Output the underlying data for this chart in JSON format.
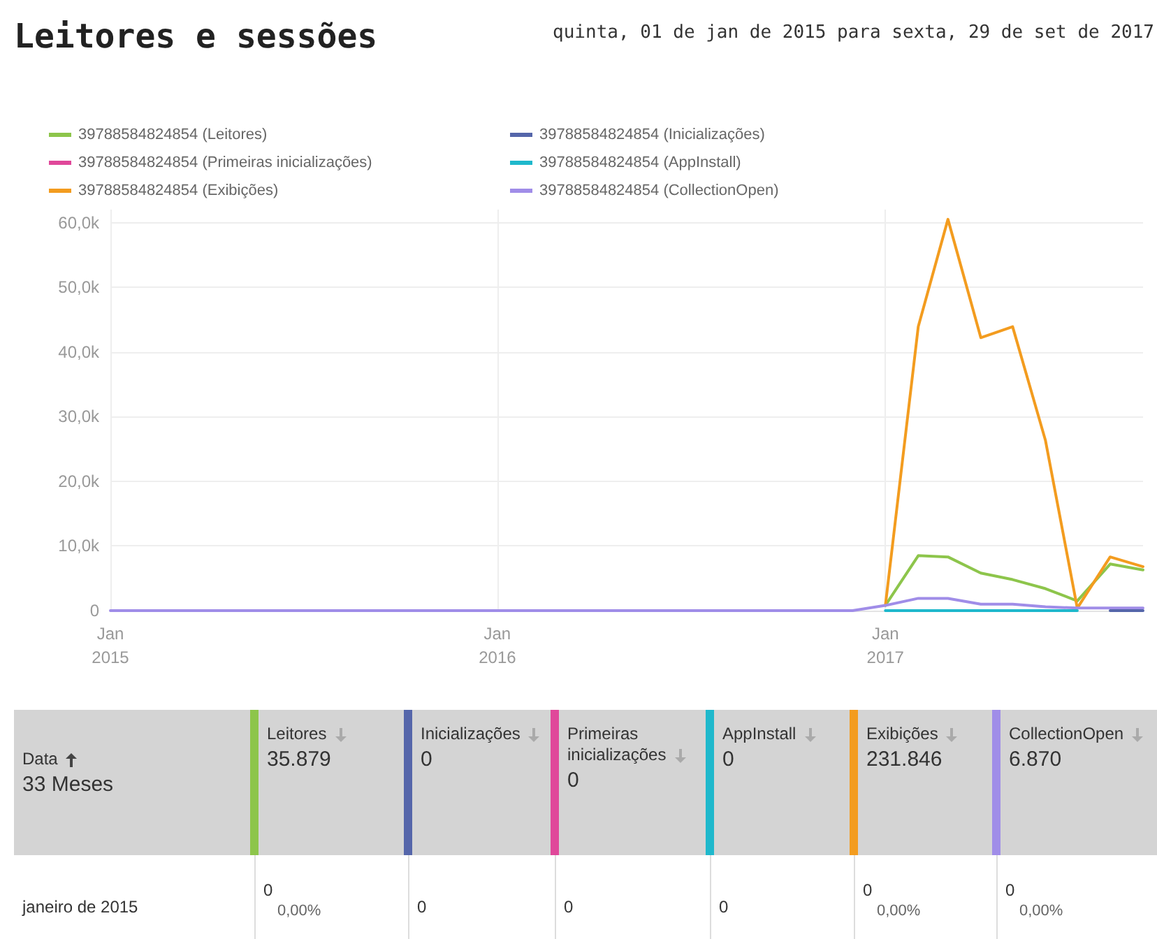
{
  "chart_data": {
    "type": "line",
    "title": "Leitores e sessões",
    "subtitle": "quinta, 01 de jan de 2015 para sexta, 29 de set de 2017",
    "x": [
      "2015-01",
      "2015-02",
      "2015-03",
      "2015-04",
      "2015-05",
      "2015-06",
      "2015-07",
      "2015-08",
      "2015-09",
      "2015-10",
      "2015-11",
      "2015-12",
      "2016-01",
      "2016-02",
      "2016-03",
      "2016-04",
      "2016-05",
      "2016-06",
      "2016-07",
      "2016-08",
      "2016-09",
      "2016-10",
      "2016-11",
      "2016-12",
      "2017-01",
      "2017-02",
      "2017-03",
      "2017-04",
      "2017-05",
      "2017-06",
      "2017-07",
      "2017-08",
      "2017-09"
    ],
    "series": [
      {
        "name": "39788584824854 (Leitores)",
        "color": "#8dc54b",
        "values": [
          null,
          null,
          null,
          null,
          null,
          null,
          null,
          null,
          null,
          null,
          null,
          null,
          null,
          null,
          null,
          null,
          null,
          null,
          null,
          null,
          null,
          null,
          null,
          null,
          800,
          8500,
          8300,
          5800,
          4800,
          3400,
          1500,
          7200,
          6300
        ]
      },
      {
        "name": "39788584824854 (Primeiras inicializações)",
        "color": "#e0489a",
        "values": [
          null,
          null,
          null,
          null,
          null,
          null,
          null,
          null,
          null,
          null,
          null,
          null,
          null,
          null,
          null,
          null,
          null,
          null,
          null,
          null,
          null,
          null,
          null,
          null,
          null,
          null,
          null,
          null,
          null,
          null,
          null,
          null,
          null
        ]
      },
      {
        "name": "39788584824854 (Exibições)",
        "color": "#f39c1f",
        "values": [
          null,
          null,
          null,
          null,
          null,
          null,
          null,
          null,
          null,
          null,
          null,
          null,
          null,
          null,
          null,
          null,
          null,
          null,
          null,
          null,
          null,
          null,
          null,
          null,
          800,
          43900,
          60500,
          42200,
          43900,
          26300,
          400,
          8300,
          6800
        ]
      },
      {
        "name": "39788584824854 (CollectionOpen)",
        "color": "#a08de8",
        "values": [
          0,
          0,
          0,
          0,
          0,
          0,
          0,
          0,
          0,
          0,
          0,
          0,
          0,
          0,
          0,
          0,
          0,
          0,
          0,
          0,
          0,
          0,
          0,
          0,
          800,
          1900,
          1900,
          1000,
          1000,
          600,
          400,
          400,
          400
        ]
      },
      {
        "name": "39788584824854 (AppInstall)",
        "color": "#1fb8cc",
        "values": [
          null,
          null,
          null,
          null,
          null,
          null,
          null,
          null,
          null,
          null,
          null,
          null,
          null,
          null,
          null,
          null,
          null,
          null,
          null,
          null,
          null,
          null,
          null,
          null,
          0,
          0,
          0,
          0,
          0,
          0,
          0,
          null,
          null
        ]
      },
      {
        "name": "39788584824854 (Inicializações)",
        "color": "#5566aa",
        "values": [
          null,
          null,
          null,
          null,
          null,
          null,
          null,
          null,
          null,
          null,
          null,
          null,
          null,
          null,
          null,
          null,
          null,
          null,
          null,
          null,
          null,
          null,
          null,
          null,
          null,
          null,
          null,
          null,
          null,
          null,
          null,
          0,
          0
        ]
      }
    ],
    "xlim": [
      "2015-01",
      "2017-09"
    ],
    "xticks": [
      {
        "value": "2015-01",
        "label": "Jan\n2015"
      },
      {
        "value": "2016-01",
        "label": "Jan\n2016"
      },
      {
        "value": "2017-01",
        "label": "Jan\n2017"
      }
    ],
    "ylim": [
      0,
      62000
    ],
    "yticks": [
      0,
      {
        "value": 10000,
        "label": "10,0k"
      },
      {
        "value": 20000,
        "label": "20,0k"
      },
      {
        "value": 30000,
        "label": "30,0k"
      },
      {
        "value": 40000,
        "label": "40,0k"
      },
      {
        "value": 50000,
        "label": "50,0k"
      },
      {
        "value": 60000,
        "label": "60,0k"
      }
    ],
    "grid": true,
    "legend": "top left",
    "marker": "none",
    "line_style": "solid",
    "annotations": [
      "Data",
      "33 Meses",
      "Leitores",
      "35.879",
      "Inicializações",
      "0",
      "Primeiras inicializações",
      "0",
      "AppInstall",
      "0",
      "Exibições",
      "231.846",
      "CollectionOpen",
      "6.870",
      "janeiro de 2015",
      "0",
      "0,00%",
      "0",
      "0",
      "0",
      "0",
      "0,00%",
      "0",
      "0,00%"
    ]
  }
}
